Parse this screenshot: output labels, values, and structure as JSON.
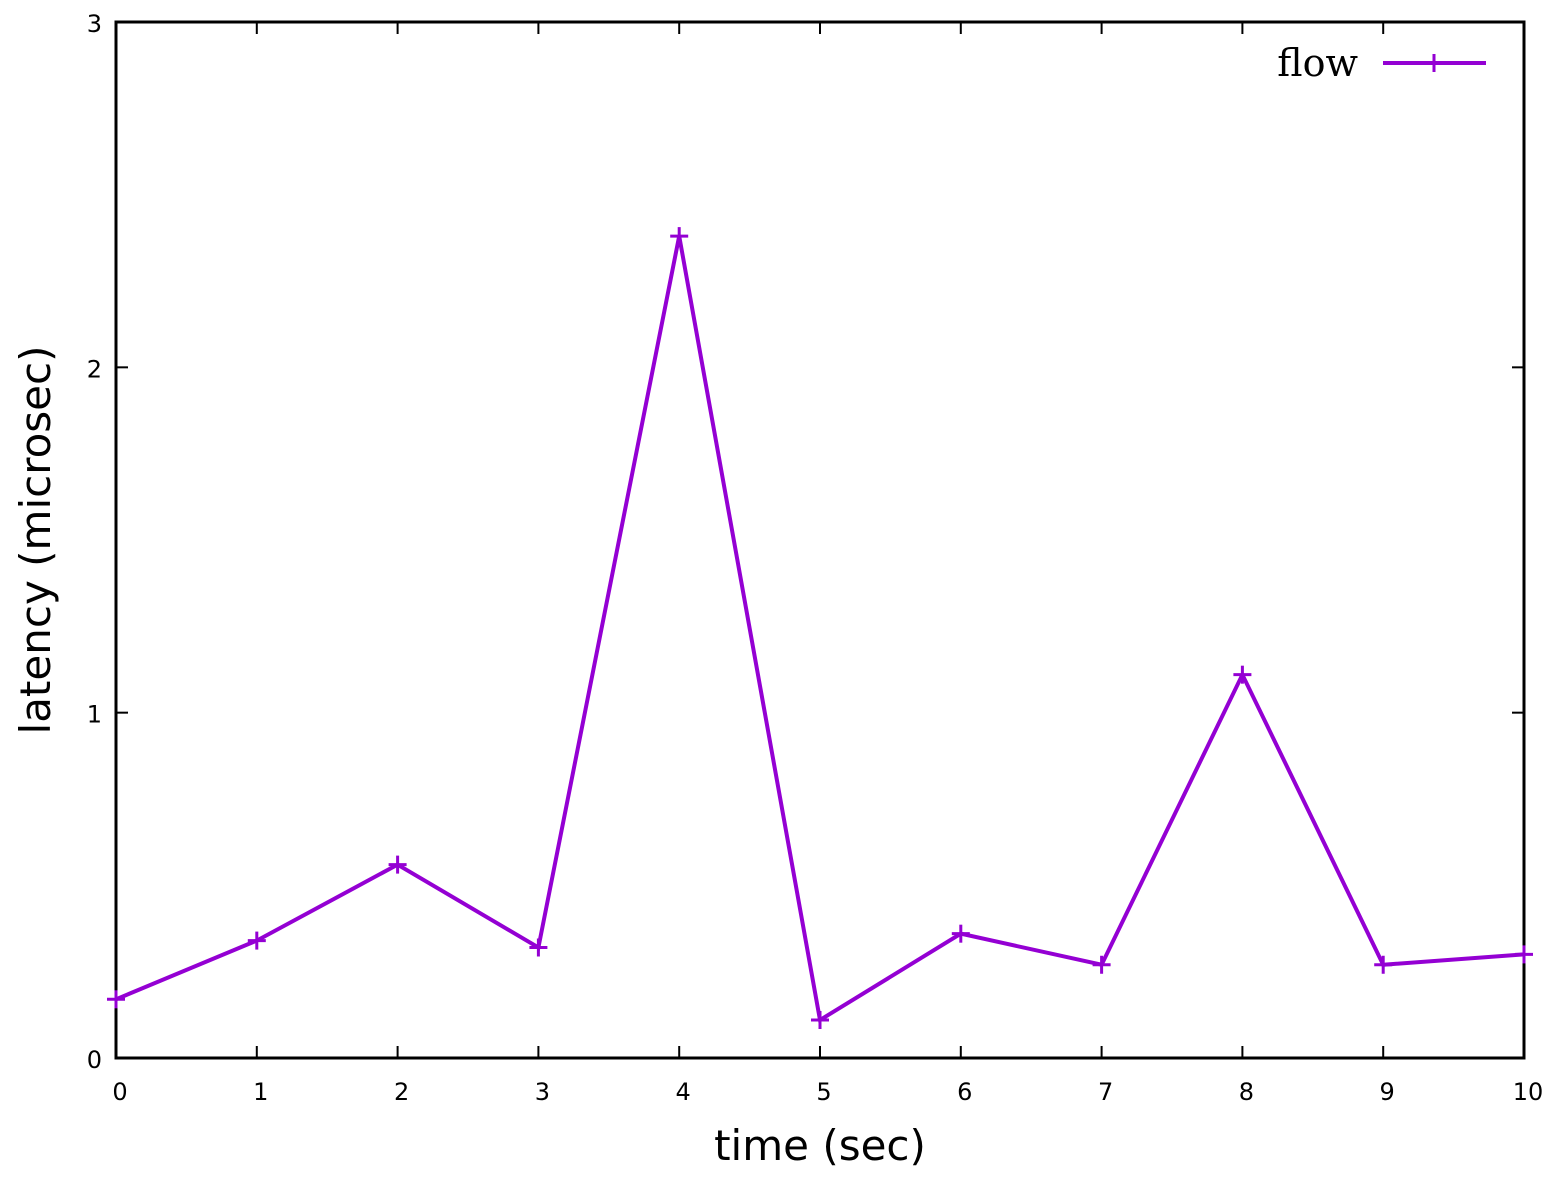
{
  "chart_data": {
    "type": "line",
    "xlabel": "time (sec)",
    "ylabel": "latency (microsec)",
    "xlim": [
      0,
      10
    ],
    "ylim": [
      0,
      3
    ],
    "x_ticks": [
      "0",
      "1",
      "2",
      "3",
      "4",
      "5",
      "6",
      "7",
      "8",
      "9",
      "10"
    ],
    "y_ticks": [
      "0",
      "1",
      "2",
      "3"
    ],
    "grid": false,
    "legend_position": "top-right",
    "series": [
      {
        "name": "flow",
        "color": "#9400d3",
        "marker": "plus",
        "x": [
          0,
          1,
          2,
          3,
          4,
          5,
          6,
          7,
          8,
          9,
          10
        ],
        "y": [
          0.17,
          0.34,
          0.56,
          0.32,
          2.38,
          0.11,
          0.36,
          0.27,
          1.11,
          0.27,
          0.3
        ]
      }
    ]
  }
}
